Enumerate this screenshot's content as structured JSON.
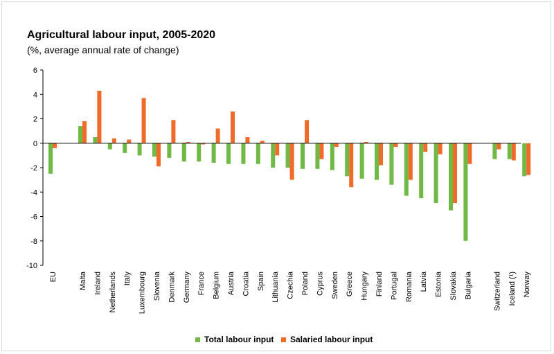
{
  "chart_data": {
    "type": "bar",
    "title": "Agricultural labour input, 2005-2020",
    "subtitle": "(%, average annual rate of change)",
    "ylim": [
      -10,
      6
    ],
    "yticks": [
      6,
      4,
      2,
      0,
      -2,
      -4,
      -6,
      -8,
      -10
    ],
    "grid": false,
    "legend_position": "bottom",
    "categories": [
      "EU",
      "Malta",
      "Ireland",
      "Netherlands",
      "Italy",
      "Luxembourg",
      "Slovenia",
      "Denmark",
      "Germany",
      "France",
      "Belgium",
      "Austria",
      "Croatia",
      "Spain",
      "Lithuania",
      "Czechia",
      "Poland",
      "Cyprus",
      "Sweden",
      "Greece",
      "Hungary",
      "Finland",
      "Portugal",
      "Romania",
      "Latvia",
      "Estonia",
      "Slovakia",
      "Bulgaria",
      "Switzerland",
      "Iceland (¹)",
      "Norway"
    ],
    "series": [
      {
        "name": "Total labour input",
        "color": "#71b946",
        "values": [
          -2.5,
          1.4,
          0.5,
          -0.5,
          -0.8,
          -1.0,
          -1.1,
          -1.2,
          -1.5,
          -1.5,
          -1.6,
          -1.7,
          -1.7,
          -1.7,
          -2.0,
          -2.0,
          -2.1,
          -2.1,
          -2.2,
          -2.7,
          -2.9,
          -3.0,
          -3.4,
          -4.3,
          -4.5,
          -4.9,
          -5.5,
          -8.0,
          -1.3,
          -1.3,
          -2.7
        ]
      },
      {
        "name": "Salaried labour input",
        "color": "#f06a2a",
        "values": [
          -0.4,
          1.8,
          4.3,
          0.4,
          0.3,
          3.7,
          -1.9,
          1.9,
          0.1,
          -0.1,
          1.2,
          2.6,
          0.5,
          0.2,
          -1.0,
          -3.0,
          1.9,
          -1.3,
          -0.3,
          -3.6,
          0.1,
          -1.8,
          -0.3,
          -3.0,
          -0.7,
          -0.9,
          -4.9,
          -1.7,
          -0.5,
          -1.4,
          -2.6
        ]
      }
    ]
  }
}
